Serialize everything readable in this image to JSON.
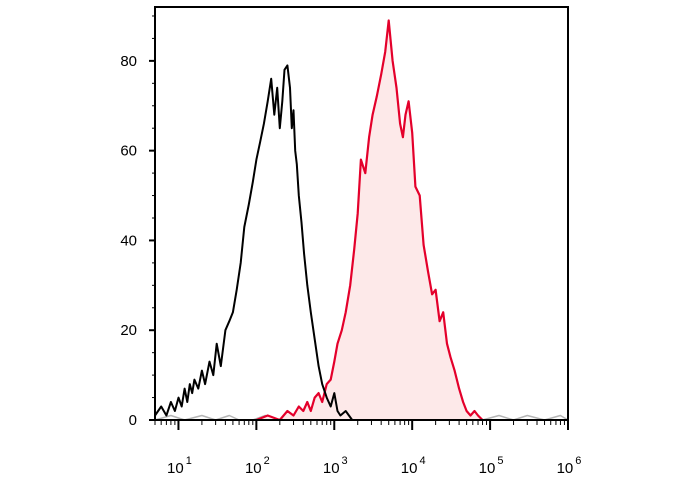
{
  "chart_data": {
    "type": "area",
    "title": "",
    "xlabel": "",
    "ylabel": "",
    "x_scale": "log",
    "xlim": [
      5,
      1000000
    ],
    "ylim": [
      0,
      92
    ],
    "grid": false,
    "legend": "none",
    "y_ticks": [
      0,
      20,
      40,
      60,
      80
    ],
    "y_tick_labels": [
      "0",
      "20",
      "40",
      "60",
      "80"
    ],
    "x_ticks": [
      10,
      100,
      1000,
      10000,
      100000,
      1000000
    ],
    "x_tick_labels": [
      {
        "base": "10",
        "exp": "1"
      },
      {
        "base": "10",
        "exp": "2"
      },
      {
        "base": "10",
        "exp": "3"
      },
      {
        "base": "10",
        "exp": "4"
      },
      {
        "base": "10",
        "exp": "5"
      },
      {
        "base": "10",
        "exp": "6"
      }
    ],
    "series": [
      {
        "color": "#000000",
        "fill": "none",
        "x": [
          5,
          6,
          7,
          8,
          9,
          10,
          11,
          12,
          13,
          14,
          15,
          16,
          18,
          20,
          22,
          25,
          28,
          31,
          35,
          40,
          45,
          50,
          56,
          63,
          70,
          80,
          90,
          100,
          112,
          125,
          140,
          155,
          170,
          185,
          200,
          215,
          230,
          250,
          270,
          285,
          300,
          315,
          330,
          350,
          380,
          410,
          450,
          500,
          560,
          630,
          700,
          800,
          900,
          1000,
          1100,
          1200,
          1400,
          1700,
          2000
        ],
        "values": [
          1,
          3,
          1,
          4,
          2,
          5,
          3,
          7,
          4,
          8,
          6,
          9,
          7,
          11,
          8,
          13,
          10,
          17,
          12,
          20,
          22,
          24,
          29,
          35,
          43,
          48,
          53,
          58,
          62,
          66,
          71,
          76,
          68,
          74,
          65,
          71,
          78,
          79,
          74,
          65,
          69,
          60,
          57,
          50,
          44,
          37,
          30,
          24,
          18,
          12,
          8,
          5,
          3,
          6,
          2,
          1,
          2,
          0,
          0
        ]
      },
      {
        "color": "#e4002b",
        "fill": "#fde9e9",
        "x": [
          100,
          140,
          200,
          250,
          300,
          350,
          400,
          450,
          500,
          560,
          630,
          700,
          800,
          900,
          1000,
          1100,
          1250,
          1400,
          1600,
          1800,
          2000,
          2200,
          2500,
          2800,
          3100,
          3500,
          4000,
          4500,
          5000,
          5600,
          6300,
          7000,
          7600,
          8200,
          9000,
          10000,
          11000,
          12500,
          14000,
          16000,
          18000,
          20000,
          22500,
          25000,
          28000,
          31000,
          35000,
          40000,
          45000,
          50000,
          56000,
          63000,
          70000,
          80000
        ],
        "values": [
          0,
          1,
          0,
          2,
          1,
          3,
          2,
          4,
          2,
          5,
          6,
          4,
          8,
          9,
          13,
          17,
          20,
          24,
          30,
          38,
          46,
          58,
          55,
          63,
          68,
          72,
          77,
          82,
          89,
          80,
          74,
          66,
          63,
          68,
          71,
          64,
          52,
          50,
          39,
          33,
          28,
          29,
          22,
          24,
          17,
          14,
          11,
          7,
          4,
          2,
          1,
          2,
          1,
          0
        ]
      },
      {
        "color": "#b4b4b4",
        "fill": "none",
        "x": [
          5,
          8,
          12,
          20,
          30,
          45,
          60,
          90,
          130,
          200,
          300,
          500,
          800,
          1300,
          2000,
          3000,
          5000,
          8000,
          13000,
          20000,
          30000,
          50000,
          80000,
          130000,
          200000,
          300000,
          500000,
          800000,
          1000000
        ],
        "values": [
          0,
          1,
          0,
          1,
          0,
          1,
          0,
          0,
          1,
          0,
          0,
          1,
          0,
          0,
          1,
          0,
          0,
          0,
          1,
          0,
          0,
          1,
          0,
          1,
          0,
          1,
          0,
          1,
          0
        ]
      }
    ]
  }
}
